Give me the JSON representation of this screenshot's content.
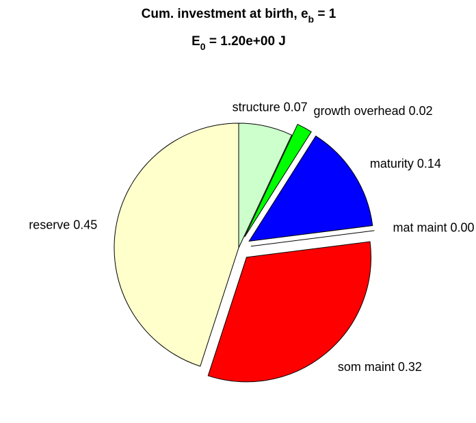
{
  "chart_data": {
    "type": "pie",
    "title": [
      "Cum. investment at birth, e",
      "b",
      " = 1"
    ],
    "subtitle": [
      "E",
      "0",
      " = 1.20e+00 J"
    ],
    "categories": [
      "structure",
      "growth overhead",
      "maturity",
      "mat maint",
      "som maint",
      "reserve"
    ],
    "values": [
      0.07,
      0.02,
      0.14,
      0.0,
      0.32,
      0.45
    ],
    "value_labels": [
      "0.07",
      "0.02",
      "0.14",
      "0.00",
      "0.32",
      "0.45"
    ],
    "colors": [
      "#ccffcc",
      "#00ff00",
      "#0000ff",
      "#ffffff",
      "#ff0000",
      "#ffffcc"
    ],
    "explode": [
      false,
      true,
      true,
      true,
      true,
      false
    ]
  }
}
